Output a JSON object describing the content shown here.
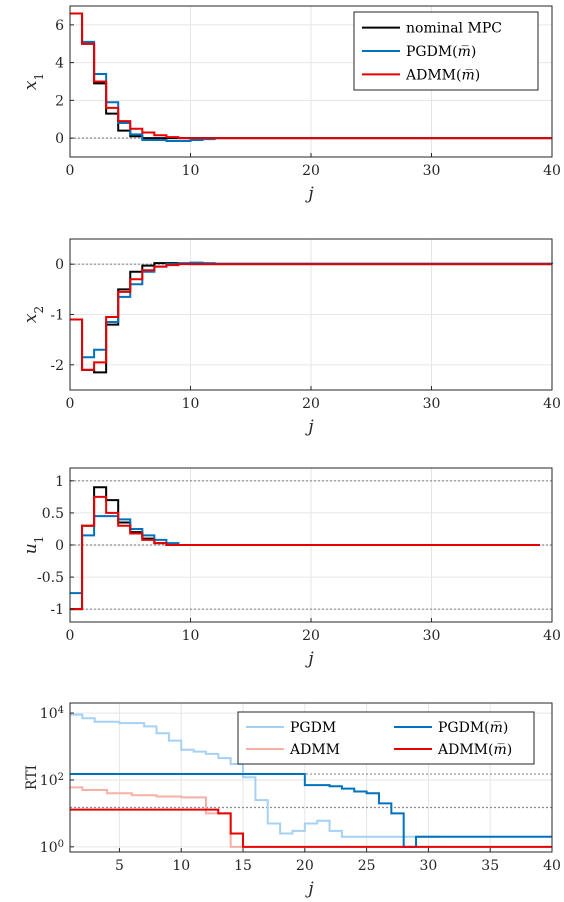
{
  "chart_data": [
    {
      "type": "line",
      "step": true,
      "xlabel": "j",
      "ylabel": "x_1",
      "xlim": [
        0,
        40
      ],
      "ylim": [
        -1,
        7
      ],
      "xticks": [
        0,
        10,
        20,
        30,
        40
      ],
      "xtick_labels": [
        "0",
        "10",
        "20",
        "30",
        "40"
      ],
      "yticks": [
        0,
        2,
        4,
        6
      ],
      "ytick_labels": [
        "0",
        "2",
        "4",
        "6"
      ],
      "grid": true,
      "legend_position": "top-right",
      "reference_lines": [
        0
      ],
      "series": [
        {
          "name": "nominal MPC",
          "color": "#000000",
          "x": [
            0,
            1,
            2,
            3,
            4,
            5,
            6,
            7,
            8,
            9,
            10,
            11,
            12,
            40
          ],
          "y": [
            6.6,
            5.0,
            2.9,
            1.3,
            0.4,
            0.1,
            0.0,
            0.0,
            0.0,
            0.0,
            0.0,
            0.0,
            0.0,
            0.0
          ]
        },
        {
          "name": "PGDM(m̅)",
          "color": "#0072bd",
          "x": [
            0,
            1,
            2,
            3,
            4,
            5,
            6,
            7,
            8,
            9,
            10,
            11,
            12,
            40
          ],
          "y": [
            6.6,
            5.1,
            3.4,
            1.9,
            0.8,
            0.2,
            -0.1,
            -0.1,
            -0.15,
            -0.15,
            -0.1,
            -0.05,
            0.0,
            0.0
          ]
        },
        {
          "name": "ADMM(m̅)",
          "color": "#e60000",
          "x": [
            0,
            1,
            2,
            3,
            4,
            5,
            6,
            7,
            8,
            9,
            10,
            11,
            12,
            40
          ],
          "y": [
            6.6,
            5.0,
            3.0,
            1.6,
            0.9,
            0.5,
            0.3,
            0.15,
            0.05,
            0.0,
            0.0,
            0.0,
            0.0,
            0.0
          ]
        }
      ]
    },
    {
      "type": "line",
      "step": true,
      "xlabel": "j",
      "ylabel": "x_2",
      "xlim": [
        0,
        40
      ],
      "ylim": [
        -2.5,
        0.5
      ],
      "xticks": [
        0,
        10,
        20,
        30,
        40
      ],
      "xtick_labels": [
        "0",
        "10",
        "20",
        "30",
        "40"
      ],
      "yticks": [
        -2,
        -1,
        0
      ],
      "ytick_labels": [
        "-2",
        "-1",
        "0"
      ],
      "grid": true,
      "reference_lines": [
        0
      ],
      "series": [
        {
          "name": "nominal MPC",
          "color": "#000000",
          "x": [
            0,
            1,
            2,
            3,
            4,
            5,
            6,
            7,
            8,
            9,
            10,
            11,
            12,
            40
          ],
          "y": [
            -1.1,
            -2.1,
            -2.15,
            -1.2,
            -0.5,
            -0.15,
            -0.03,
            0.02,
            0.02,
            0.01,
            0.0,
            0.0,
            0.0,
            0.0
          ]
        },
        {
          "name": "PGDM(m̅)",
          "color": "#0072bd",
          "x": [
            0,
            1,
            2,
            3,
            4,
            5,
            6,
            7,
            8,
            9,
            10,
            11,
            12,
            40
          ],
          "y": [
            -1.1,
            -1.85,
            -1.7,
            -1.15,
            -0.65,
            -0.4,
            -0.15,
            -0.05,
            0.0,
            0.02,
            0.03,
            0.02,
            0.01,
            0.0
          ]
        },
        {
          "name": "ADMM(m̅)",
          "color": "#e60000",
          "x": [
            0,
            1,
            2,
            3,
            4,
            5,
            6,
            7,
            8,
            9,
            10,
            11,
            12,
            40
          ],
          "y": [
            -1.1,
            -2.1,
            -1.95,
            -1.05,
            -0.55,
            -0.3,
            -0.12,
            -0.05,
            -0.02,
            0.0,
            0.0,
            0.0,
            0.0,
            0.0
          ]
        }
      ]
    },
    {
      "type": "line",
      "step": true,
      "xlabel": "j",
      "ylabel": "u_1",
      "xlim": [
        0,
        40
      ],
      "ylim": [
        -1.2,
        1.2
      ],
      "xticks": [
        0,
        10,
        20,
        30,
        40
      ],
      "xtick_labels": [
        "0",
        "10",
        "20",
        "30",
        "40"
      ],
      "yticks": [
        -1,
        -0.5,
        0,
        0.5,
        1
      ],
      "ytick_labels": [
        "-1",
        "-0.5",
        "0",
        "0.5",
        "1"
      ],
      "grid": true,
      "reference_lines": [
        1,
        0,
        -1
      ],
      "series": [
        {
          "name": "nominal MPC",
          "color": "#000000",
          "x": [
            0,
            1,
            2,
            3,
            4,
            5,
            6,
            7,
            8,
            9,
            39
          ],
          "y": [
            -1.0,
            0.3,
            0.9,
            0.7,
            0.35,
            0.2,
            0.1,
            0.03,
            0.0,
            0.0,
            0.0
          ]
        },
        {
          "name": "PGDM(m̅)",
          "color": "#0072bd",
          "x": [
            0,
            1,
            2,
            3,
            4,
            5,
            6,
            7,
            8,
            9,
            39
          ],
          "y": [
            -0.75,
            0.15,
            0.45,
            0.45,
            0.4,
            0.25,
            0.15,
            0.08,
            0.03,
            0.0,
            0.0
          ]
        },
        {
          "name": "ADMM(m̅)",
          "color": "#e60000",
          "x": [
            0,
            1,
            2,
            3,
            4,
            5,
            6,
            7,
            8,
            9,
            39
          ],
          "y": [
            -1.0,
            0.3,
            0.75,
            0.5,
            0.3,
            0.18,
            0.08,
            0.03,
            0.0,
            0.0,
            0.0
          ]
        }
      ]
    },
    {
      "type": "line",
      "step": true,
      "xlabel": "j",
      "ylabel": "RTI",
      "yscale": "log",
      "xlim": [
        1,
        40
      ],
      "ylim": [
        0.7,
        20000
      ],
      "xticks": [
        5,
        10,
        15,
        20,
        25,
        30,
        35,
        40
      ],
      "xtick_labels": [
        "5",
        "10",
        "15",
        "20",
        "25",
        "30",
        "35",
        "40"
      ],
      "yticks": [
        1,
        100,
        10000
      ],
      "ytick_labels": [
        "10^0",
        "10^2",
        "10^4"
      ],
      "grid": true,
      "legend_position": "top-right",
      "reference_lines": [
        150,
        15
      ],
      "series": [
        {
          "name": "PGDM",
          "color": "#a6d1f2",
          "x": [
            1,
            2,
            3,
            5,
            7,
            8,
            9,
            10,
            11,
            12,
            13,
            14,
            15,
            16,
            17,
            18,
            19,
            20,
            21,
            22,
            23,
            25,
            26,
            29,
            31
          ],
          "y": [
            9000,
            7000,
            5500,
            5000,
            4000,
            2500,
            1500,
            800,
            700,
            600,
            450,
            300,
            120,
            25,
            5,
            2.5,
            3,
            5,
            6,
            3,
            2,
            2,
            2,
            2,
            2
          ],
          "end": 31
        },
        {
          "name": "ADMM",
          "color": "#f7b0a6",
          "x": [
            1,
            2,
            4,
            6,
            8,
            10,
            12,
            14,
            15
          ],
          "y": [
            60,
            50,
            40,
            35,
            32,
            30,
            10,
            1,
            1
          ],
          "end": 15
        },
        {
          "name": "PGDM(m̅)",
          "color": "#0072bd",
          "x": [
            1,
            19,
            20,
            22,
            23,
            24,
            25,
            26,
            27,
            28,
            29,
            40
          ],
          "y": [
            150,
            150,
            70,
            65,
            55,
            45,
            40,
            20,
            10,
            1,
            2,
            2
          ],
          "end": 40
        },
        {
          "name": "ADMM(m̅)",
          "color": "#e60000",
          "x": [
            1,
            12,
            13,
            14,
            15,
            40
          ],
          "y": [
            13,
            13,
            10,
            2.5,
            1,
            1
          ],
          "end": 40
        }
      ]
    }
  ]
}
